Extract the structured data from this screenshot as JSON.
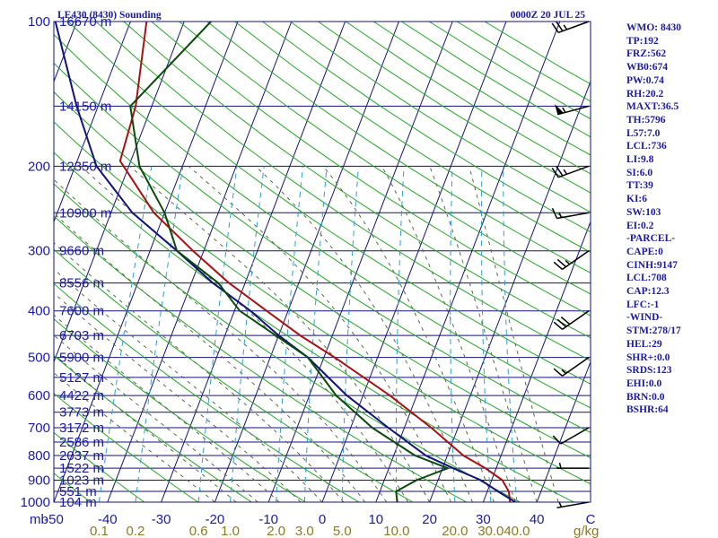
{
  "chart_data": {
    "type": "line",
    "title": "LE430 (8430) Sounding",
    "valid_time": "0000Z 20 JUL 25",
    "pressure_unit": "mb",
    "pressure_ticks": [
      100,
      200,
      300,
      400,
      500,
      600,
      700,
      800,
      900,
      1000
    ],
    "plim": [
      1000,
      100
    ],
    "temperature_ticks": [
      "-50",
      "-40",
      "-30",
      "-20",
      "-10",
      "0",
      "10",
      "20",
      "30",
      "40",
      "C"
    ],
    "tlim": [
      -50,
      50
    ],
    "mixing_ratio_unit": "g/kg",
    "mixing_ratio_ticks": [
      "0.1",
      "0.2",
      "0.6",
      "1.0",
      "2.0",
      "3.0",
      "5.0",
      "10.0",
      "20.0",
      "30.0",
      "40.0"
    ],
    "height_labels": [
      {
        "p": 100,
        "text": "16670 m"
      },
      {
        "p": 150,
        "text": "14150 m"
      },
      {
        "p": 200,
        "text": "12350 m"
      },
      {
        "p": 250,
        "text": "10900 m"
      },
      {
        "p": 300,
        "text": "9660 m"
      },
      {
        "p": 350,
        "text": "8556 m"
      },
      {
        "p": 400,
        "text": "7600 m"
      },
      {
        "p": 450,
        "text": "6703 m"
      },
      {
        "p": 500,
        "text": "5900 m"
      },
      {
        "p": 550,
        "text": "5127 m"
      },
      {
        "p": 600,
        "text": "4422 m"
      },
      {
        "p": 650,
        "text": "3773 m"
      },
      {
        "p": 700,
        "text": "3172 m"
      },
      {
        "p": 750,
        "text": "2586 m"
      },
      {
        "p": 800,
        "text": "2037 m"
      },
      {
        "p": 850,
        "text": "1522 m"
      },
      {
        "p": 900,
        "text": "1023 m"
      },
      {
        "p": 950,
        "text": "551 m"
      },
      {
        "p": 1000,
        "text": "104 m"
      }
    ],
    "series": [
      {
        "key": "temperature",
        "color": "#aa1010",
        "points": [
          {
            "p": 100,
            "t": -67
          },
          {
            "p": 150,
            "t": -63
          },
          {
            "p": 195,
            "t": -62
          },
          {
            "p": 210,
            "t": -59
          },
          {
            "p": 250,
            "t": -52
          },
          {
            "p": 300,
            "t": -42
          },
          {
            "p": 350,
            "t": -33
          },
          {
            "p": 400,
            "t": -24
          },
          {
            "p": 450,
            "t": -16
          },
          {
            "p": 500,
            "t": -8
          },
          {
            "p": 600,
            "t": 5
          },
          {
            "p": 700,
            "t": 15
          },
          {
            "p": 800,
            "t": 23
          },
          {
            "p": 850,
            "t": 28
          },
          {
            "p": 900,
            "t": 32
          },
          {
            "p": 950,
            "t": 34
          },
          {
            "p": 1000,
            "t": 35
          }
        ]
      },
      {
        "key": "dewpoint",
        "color": "#10127a",
        "points": [
          {
            "p": 100,
            "t": -84
          },
          {
            "p": 150,
            "t": -74
          },
          {
            "p": 200,
            "t": -66
          },
          {
            "p": 250,
            "t": -56
          },
          {
            "p": 300,
            "t": -45
          },
          {
            "p": 350,
            "t": -36
          },
          {
            "p": 400,
            "t": -27
          },
          {
            "p": 450,
            "t": -20
          },
          {
            "p": 500,
            "t": -13
          },
          {
            "p": 600,
            "t": -3
          },
          {
            "p": 700,
            "t": 7
          },
          {
            "p": 800,
            "t": 16
          },
          {
            "p": 850,
            "t": 22
          },
          {
            "p": 900,
            "t": 28
          },
          {
            "p": 950,
            "t": 32
          },
          {
            "p": 1000,
            "t": 36
          }
        ]
      },
      {
        "key": "wetbulb",
        "color": "#0a4a0a",
        "points": [
          {
            "p": 100,
            "t": -55
          },
          {
            "p": 150,
            "t": -64
          },
          {
            "p": 200,
            "t": -58
          },
          {
            "p": 250,
            "t": -50
          },
          {
            "p": 300,
            "t": -45
          },
          {
            "p": 350,
            "t": -35
          },
          {
            "p": 400,
            "t": -29
          },
          {
            "p": 500,
            "t": -13
          },
          {
            "p": 600,
            "t": -5
          },
          {
            "p": 700,
            "t": 4
          },
          {
            "p": 800,
            "t": 14
          },
          {
            "p": 850,
            "t": 21
          },
          {
            "p": 900,
            "t": 16
          },
          {
            "p": 950,
            "t": 13
          },
          {
            "p": 1000,
            "t": 14
          }
        ]
      }
    ],
    "wind_barbs": [
      {
        "p": 100,
        "dir": 250,
        "spd": 25
      },
      {
        "p": 150,
        "dir": 255,
        "spd": 55
      },
      {
        "p": 200,
        "dir": 250,
        "spd": 25
      },
      {
        "p": 250,
        "dir": 260,
        "spd": 15
      },
      {
        "p": 300,
        "dir": 235,
        "spd": 25
      },
      {
        "p": 400,
        "dir": 235,
        "spd": 30
      },
      {
        "p": 500,
        "dir": 235,
        "spd": 15
      },
      {
        "p": 700,
        "dir": 240,
        "spd": 10
      },
      {
        "p": 850,
        "dir": 270,
        "spd": 5
      },
      {
        "p": 1000,
        "dir": 260,
        "spd": 5
      }
    ],
    "colors": {
      "isobar": "#12127a",
      "isotherm": "#12127a",
      "dry_adiabat": "#22aa22",
      "moist_adiabat": "#5a6a4a",
      "mixing_ratio": "#2aa0cc",
      "axis_text": "#1a1aa6",
      "mixing_ratio_text": "#8a7a20",
      "wind_barb": "#000000"
    }
  },
  "stats": [
    "WMO: 8430",
    "TP:192",
    "FRZ:562",
    "WB0:674",
    "PW:0.74",
    "RH:20.2",
    "MAXT:36.5",
    "TH:5796",
    "L57:7.0",
    "LCL:736",
    "LI:9.8",
    "SI:6.0",
    "TT:39",
    "KI:6",
    "SW:103",
    "EI:0.2",
    "-PARCEL-",
    "CAPE:0",
    "CINH:9147",
    "LCL:708",
    "CAP:12.3",
    "LFC:-1",
    "-WIND-",
    "STM:278/17",
    "HEL:29",
    "SHR+:0.0",
    "SRDS:123",
    "EHI:0.0",
    "BRN:0.0",
    "BSHR:64"
  ]
}
